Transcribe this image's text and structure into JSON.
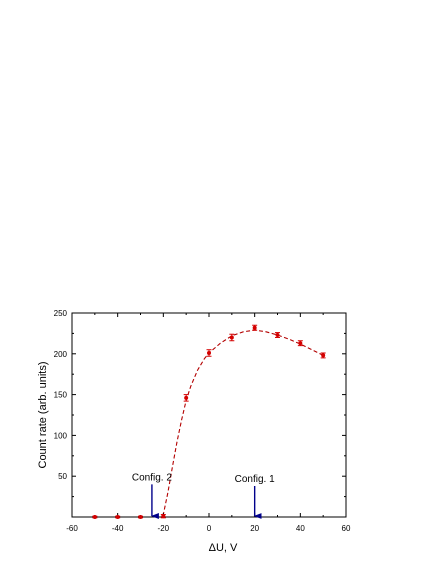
{
  "chart_data": {
    "type": "scatter",
    "xlabel": "ΔU, V",
    "ylabel": "Count rate (arb. units)",
    "xlim": [
      -60,
      60
    ],
    "ylim": [
      0,
      250
    ],
    "xticks": [
      -60,
      -40,
      -20,
      0,
      20,
      40,
      60
    ],
    "yticks": [
      50,
      100,
      150,
      200,
      250
    ],
    "grid": false,
    "colors": {
      "points": "#d40000",
      "fit": "#b30000",
      "arrows": "#00008b",
      "axes": "#000000"
    },
    "points": [
      {
        "x": -50,
        "y": 0,
        "err": 1
      },
      {
        "x": -40,
        "y": 0,
        "err": 1
      },
      {
        "x": -30,
        "y": 0,
        "err": 1
      },
      {
        "x": -20,
        "y": 1,
        "err": 2
      },
      {
        "x": -10,
        "y": 146,
        "err": 4
      },
      {
        "x": 0,
        "y": 201,
        "err": 4
      },
      {
        "x": 10,
        "y": 220,
        "err": 4
      },
      {
        "x": 20,
        "y": 232,
        "err": 3
      },
      {
        "x": 30,
        "y": 223,
        "err": 3
      },
      {
        "x": 40,
        "y": 213,
        "err": 3
      },
      {
        "x": 50,
        "y": 198,
        "err": 3
      }
    ],
    "fit_curve": [
      {
        "x": -60,
        "y": 0
      },
      {
        "x": -21,
        "y": 0
      },
      {
        "x": -20,
        "y": 3
      },
      {
        "x": -18,
        "y": 30
      },
      {
        "x": -16,
        "y": 62
      },
      {
        "x": -14,
        "y": 92
      },
      {
        "x": -12,
        "y": 119
      },
      {
        "x": -10,
        "y": 143
      },
      {
        "x": -8,
        "y": 160
      },
      {
        "x": -5,
        "y": 180
      },
      {
        "x": -2,
        "y": 194
      },
      {
        "x": 0,
        "y": 201
      },
      {
        "x": 5,
        "y": 213
      },
      {
        "x": 10,
        "y": 222
      },
      {
        "x": 15,
        "y": 227
      },
      {
        "x": 20,
        "y": 229
      },
      {
        "x": 25,
        "y": 227
      },
      {
        "x": 30,
        "y": 223
      },
      {
        "x": 35,
        "y": 218
      },
      {
        "x": 40,
        "y": 212
      },
      {
        "x": 45,
        "y": 205
      },
      {
        "x": 50,
        "y": 198
      }
    ],
    "annotations": [
      {
        "label": "Config. 2",
        "x": -25,
        "y_tail": 40,
        "y_head": 0
      },
      {
        "label": "Config. 1",
        "x": 20,
        "y_tail": 38,
        "y_head": 0
      }
    ]
  }
}
